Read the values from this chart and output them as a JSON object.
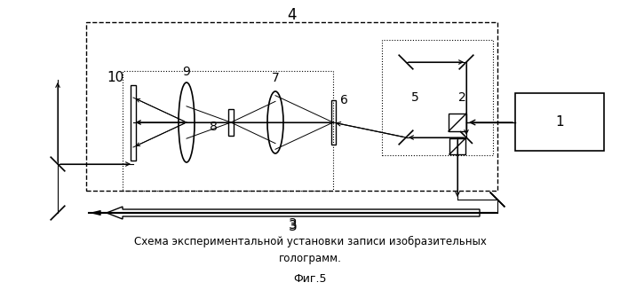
{
  "title_line1": "Схема экспериментальной установки записи изобразительных",
  "title_line2": "голограмм.",
  "fig_label": "Фиг.5",
  "bg_color": "#ffffff",
  "line_color": "#000000",
  "label_4": "4",
  "label_1": "1",
  "label_2": "2",
  "label_3": "3",
  "label_5": "5",
  "label_6": "6",
  "label_7": "7",
  "label_8": "8",
  "label_9": "9",
  "label_10": "10"
}
